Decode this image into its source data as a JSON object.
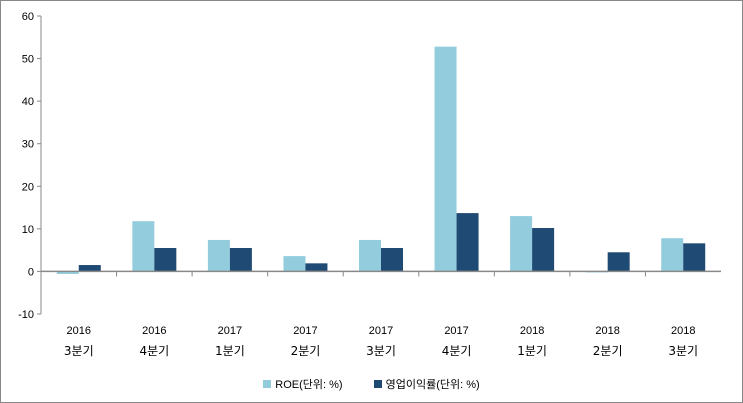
{
  "chart_data": {
    "type": "bar",
    "title": "",
    "categories": [
      [
        "2016",
        "3분기"
      ],
      [
        "2016",
        "4분기"
      ],
      [
        "2017",
        "1분기"
      ],
      [
        "2017",
        "2분기"
      ],
      [
        "2017",
        "3분기"
      ],
      [
        "2017",
        "4분기"
      ],
      [
        "2018",
        "1분기"
      ],
      [
        "2018",
        "2분기"
      ],
      [
        "2018",
        "3분기"
      ]
    ],
    "series": [
      {
        "name": "ROE(단위: %)",
        "color": "#93CDDD",
        "values": [
          -0.6,
          11.8,
          7.4,
          3.6,
          7.4,
          52.8,
          13.0,
          -0.2,
          7.8
        ]
      },
      {
        "name": "영업이익률(단위: %)",
        "color": "#1F4A73",
        "values": [
          1.5,
          5.5,
          5.5,
          1.9,
          5.5,
          13.7,
          10.2,
          4.5,
          6.6
        ]
      }
    ],
    "ylim": [
      -10,
      60
    ],
    "yticks": [
      -10,
      0,
      10,
      20,
      30,
      40,
      50,
      60
    ],
    "xlabel": "",
    "ylabel": "",
    "grid": false,
    "legend": "bottom"
  }
}
